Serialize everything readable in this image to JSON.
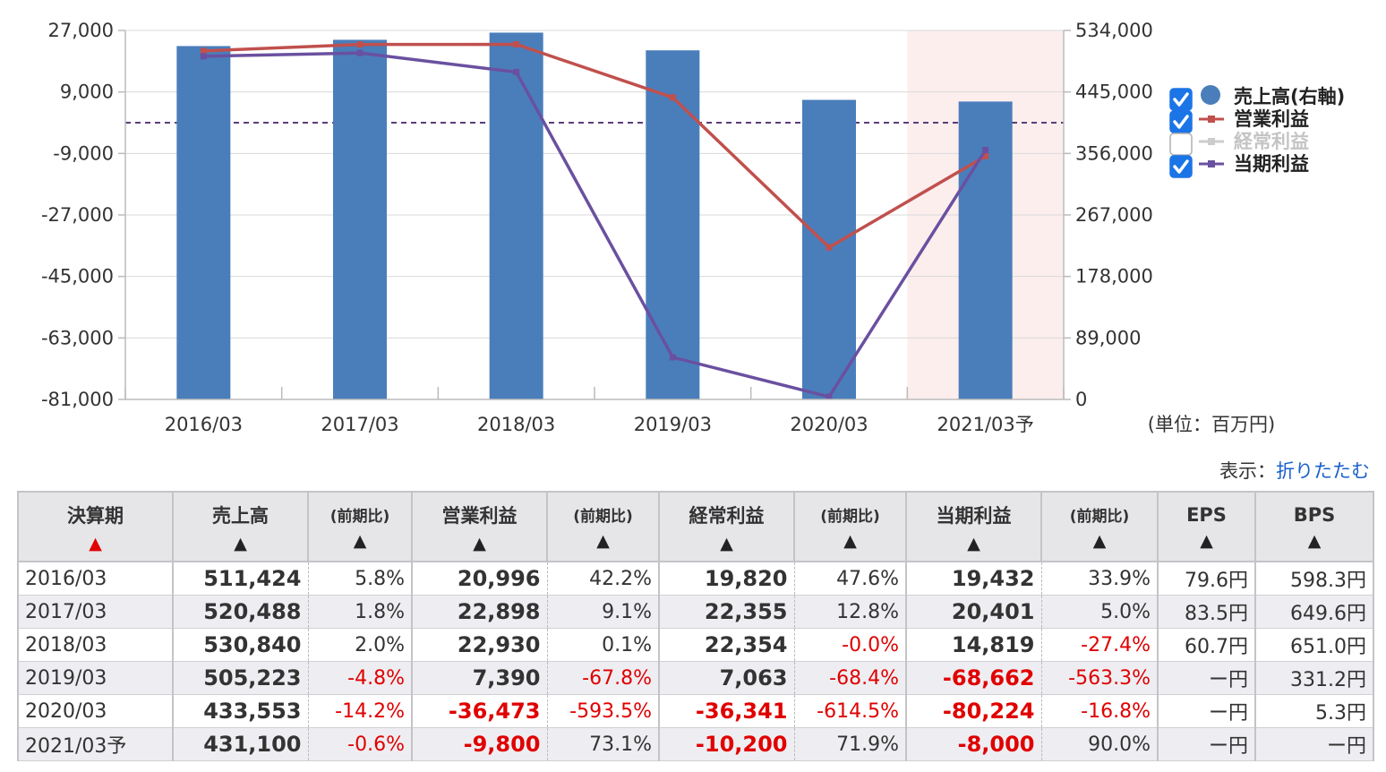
{
  "chart_data": {
    "type": "bar",
    "categories": [
      "2016/03",
      "2017/03",
      "2018/03",
      "2019/03",
      "2020/03",
      "2021/03予"
    ],
    "forecast_category": "2021/03予",
    "left_axis": {
      "ticks": [
        "27,000",
        "9,000",
        "-9,000",
        "-27,000",
        "-45,000",
        "-63,000",
        "-81,000"
      ],
      "range": [
        -81000,
        27000
      ]
    },
    "right_axis": {
      "ticks": [
        "534,000",
        "445,000",
        "356,000",
        "267,000",
        "178,000",
        "89,000",
        "0"
      ],
      "range": [
        0,
        534000
      ]
    },
    "unit_label": "(単位：百万円)",
    "reference_line_left": 0,
    "series": [
      {
        "name": "売上高(右軸)",
        "kind": "bar",
        "axis": "right",
        "color": "#4a7ebb",
        "checked": true,
        "values": [
          511424,
          520488,
          530840,
          505223,
          433553,
          431100
        ]
      },
      {
        "name": "営業利益",
        "kind": "line",
        "axis": "left",
        "color": "#c0504d",
        "checked": true,
        "values": [
          20996,
          22898,
          22930,
          7390,
          -36473,
          -9800
        ]
      },
      {
        "name": "経常利益",
        "kind": "line",
        "axis": "left",
        "color": "#c8c8c8",
        "checked": false,
        "values": [
          19820,
          22355,
          22354,
          7063,
          -36341,
          -10200
        ]
      },
      {
        "name": "当期利益",
        "kind": "line",
        "axis": "left",
        "color": "#6a50a0",
        "checked": true,
        "values": [
          19432,
          20401,
          14819,
          -68662,
          -80224,
          -8000
        ]
      }
    ]
  },
  "display": {
    "label": "表示：",
    "link": "折りたたむ"
  },
  "table": {
    "headers": [
      "決算期",
      "売上高",
      "(前期比)",
      "営業利益",
      "(前期比)",
      "経常利益",
      "(前期比)",
      "当期利益",
      "(前期比)",
      "EPS",
      "BPS"
    ],
    "sort_arrow": "▲",
    "rows": [
      {
        "period": "2016/03",
        "sales": "511,424",
        "sales_chg": "5.8%",
        "op": "20,996",
        "op_chg": "42.2%",
        "ord": "19,820",
        "ord_chg": "47.6%",
        "net": "19,432",
        "net_chg": "33.9%",
        "eps": "79.6円",
        "bps": "598.3円"
      },
      {
        "period": "2017/03",
        "sales": "520,488",
        "sales_chg": "1.8%",
        "op": "22,898",
        "op_chg": "9.1%",
        "ord": "22,355",
        "ord_chg": "12.8%",
        "net": "20,401",
        "net_chg": "5.0%",
        "eps": "83.5円",
        "bps": "649.6円"
      },
      {
        "period": "2018/03",
        "sales": "530,840",
        "sales_chg": "2.0%",
        "op": "22,930",
        "op_chg": "0.1%",
        "ord": "22,354",
        "ord_chg": "-0.0%",
        "net": "14,819",
        "net_chg": "-27.4%",
        "eps": "60.7円",
        "bps": "651.0円"
      },
      {
        "period": "2019/03",
        "sales": "505,223",
        "sales_chg": "-4.8%",
        "op": "7,390",
        "op_chg": "-67.8%",
        "ord": "7,063",
        "ord_chg": "-68.4%",
        "net": "-68,662",
        "net_chg": "-563.3%",
        "eps": "ー円",
        "bps": "331.2円"
      },
      {
        "period": "2020/03",
        "sales": "433,553",
        "sales_chg": "-14.2%",
        "op": "-36,473",
        "op_chg": "-593.5%",
        "ord": "-36,341",
        "ord_chg": "-614.5%",
        "net": "-80,224",
        "net_chg": "-16.8%",
        "eps": "ー円",
        "bps": "5.3円"
      },
      {
        "period": "2021/03予",
        "sales": "431,100",
        "sales_chg": "-0.6%",
        "op": "-9,800",
        "op_chg": "73.1%",
        "ord": "-10,200",
        "ord_chg": "71.9%",
        "net": "-8,000",
        "net_chg": "90.0%",
        "eps": "ー円",
        "bps": "ー円"
      }
    ]
  }
}
